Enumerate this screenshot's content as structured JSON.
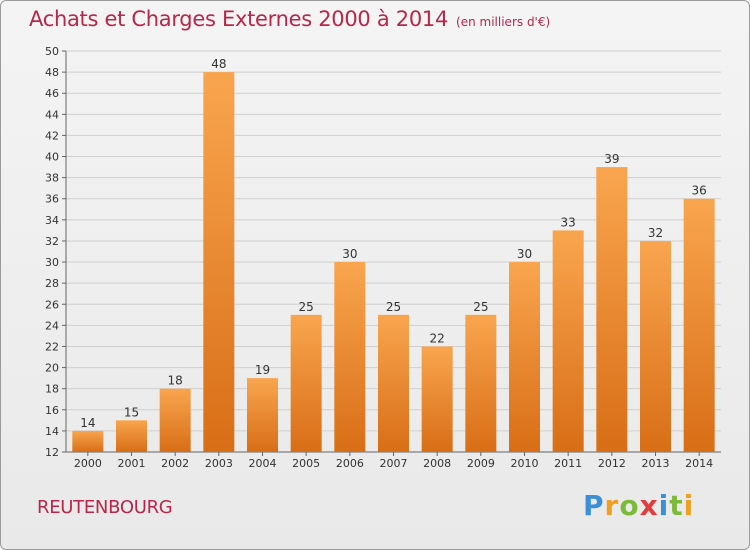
{
  "chart_data": {
    "type": "bar",
    "title": "Achats et Charges Externes 2000 à 2014",
    "subtitle": "(en milliers d'€)",
    "categories": [
      "2000",
      "2001",
      "2002",
      "2003",
      "2004",
      "2005",
      "2006",
      "2007",
      "2008",
      "2009",
      "2010",
      "2011",
      "2012",
      "2013",
      "2014"
    ],
    "values": [
      14,
      15,
      18,
      48,
      19,
      25,
      30,
      25,
      22,
      25,
      30,
      33,
      39,
      32,
      36
    ],
    "xlabel": "",
    "ylabel": "",
    "ylim": [
      12,
      50
    ],
    "yticks": [
      12,
      14,
      16,
      18,
      20,
      22,
      24,
      26,
      28,
      30,
      32,
      34,
      36,
      38,
      40,
      42,
      44,
      46,
      48,
      50
    ],
    "grid": true,
    "bar_color": "#e8862c",
    "bar_color_light": "#f9a54f",
    "bar_color_dark": "#d86e16"
  },
  "commune": "REUTENBOURG",
  "logo": {
    "letters": [
      {
        "ch": "P",
        "color": "#3a8fd8"
      },
      {
        "ch": "r",
        "color": "#f0a020"
      },
      {
        "ch": "o",
        "color": "#7dba3a"
      },
      {
        "ch": "x",
        "color": "#e23d3d"
      },
      {
        "ch": "i",
        "color": "#3a8fd8"
      },
      {
        "ch": "t",
        "color": "#7dba3a"
      },
      {
        "ch": "i",
        "color": "#f0a020"
      }
    ]
  },
  "colors": {
    "title": "#b8264a",
    "grid": "#cfcfcf",
    "axis": "#666666"
  }
}
